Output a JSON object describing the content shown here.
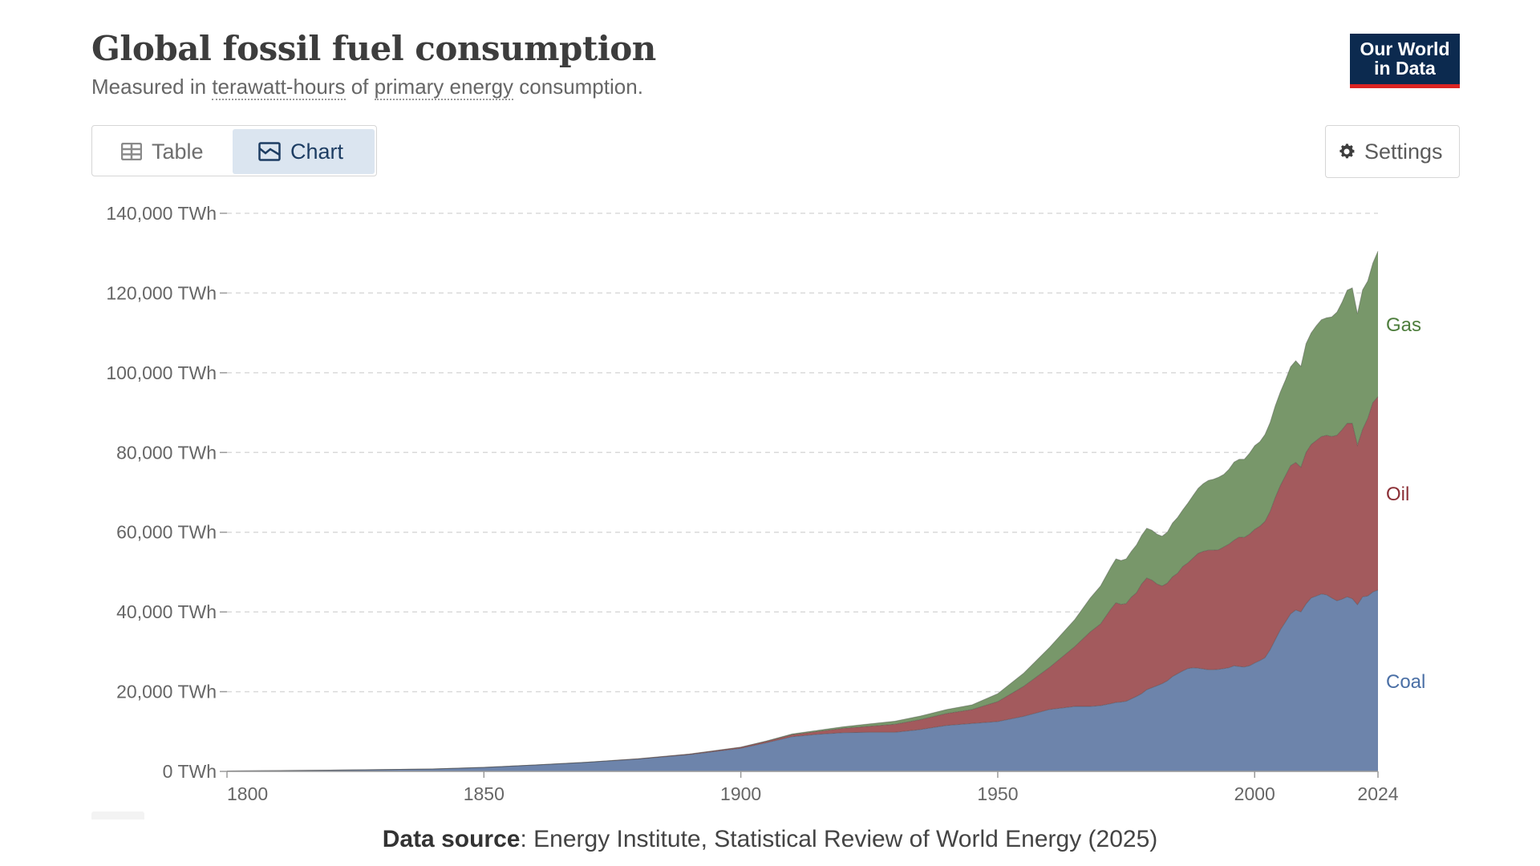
{
  "header": {
    "title": "Global fossil fuel consumption",
    "subtitle_prefix": "Measured in ",
    "subtitle_link1": "terawatt-hours",
    "subtitle_mid": " of ",
    "subtitle_link2": "primary energy",
    "subtitle_suffix": " consumption."
  },
  "logo": {
    "line1": "Our World",
    "line2": "in Data"
  },
  "tabs": {
    "table_label": "Table",
    "chart_label": "Chart",
    "selected": "Chart"
  },
  "settings_label": "Settings",
  "source": {
    "label": "Data source",
    "text": ": Energy Institute, Statistical Review of World Energy (2025)"
  },
  "colors": {
    "coal": "#6d84ab",
    "oil": "#a35a5d",
    "gas": "#78976a",
    "coal_label": "#4a6fa5",
    "oil_label": "#8b2f36",
    "gas_label": "#4d7d3c"
  },
  "chart_data": {
    "type": "area",
    "stacked": true,
    "xlim": [
      1800,
      2024
    ],
    "ylim": [
      0,
      140000
    ],
    "y_ticks": [
      "0 TWh",
      "20,000 TWh",
      "40,000 TWh",
      "60,000 TWh",
      "80,000 TWh",
      "100,000 TWh",
      "120,000 TWh",
      "140,000 TWh"
    ],
    "y_tick_values": [
      0,
      20000,
      40000,
      60000,
      80000,
      100000,
      120000,
      140000
    ],
    "x_ticks": [
      1800,
      1850,
      1900,
      1950,
      2000,
      2024
    ],
    "grid": "horizontal dashed",
    "legend": "inline right labels",
    "x": [
      1800,
      1820,
      1840,
      1850,
      1860,
      1870,
      1880,
      1890,
      1900,
      1905,
      1910,
      1915,
      1920,
      1925,
      1930,
      1935,
      1940,
      1945,
      1950,
      1955,
      1960,
      1965,
      1968,
      1970,
      1972,
      1973,
      1974,
      1975,
      1976,
      1977,
      1978,
      1979,
      1980,
      1981,
      1982,
      1983,
      1984,
      1985,
      1986,
      1987,
      1988,
      1989,
      1990,
      1991,
      1992,
      1993,
      1994,
      1995,
      1996,
      1997,
      1998,
      1999,
      2000,
      2001,
      2002,
      2003,
      2004,
      2005,
      2006,
      2007,
      2008,
      2009,
      2010,
      2011,
      2012,
      2013,
      2014,
      2015,
      2016,
      2017,
      2018,
      2019,
      2020,
      2021,
      2022,
      2023,
      2024
    ],
    "series": [
      {
        "name": "Coal",
        "values": [
          100,
          300,
          600,
          1000,
          1600,
          2300,
          3100,
          4200,
          5800,
          7200,
          8700,
          9300,
          9700,
          9800,
          9800,
          10500,
          11500,
          12000,
          12500,
          13800,
          15500,
          16300,
          16300,
          16500,
          17000,
          17300,
          17400,
          17600,
          18200,
          18800,
          19500,
          20500,
          21000,
          21500,
          22000,
          22700,
          23800,
          24500,
          25200,
          25800,
          26000,
          25900,
          25700,
          25500,
          25500,
          25600,
          25800,
          26000,
          26500,
          26300,
          26200,
          26500,
          27200,
          27800,
          28500,
          30500,
          33000,
          35500,
          37500,
          39500,
          40500,
          40000,
          42000,
          43500,
          44000,
          44500,
          44300,
          43500,
          42800,
          43200,
          43800,
          43300,
          41800,
          43800,
          44000,
          45000,
          45500
        ]
      },
      {
        "name": "Oil",
        "values": [
          0,
          0,
          0,
          0,
          0,
          0,
          50,
          150,
          250,
          350,
          500,
          700,
          1100,
          1500,
          2000,
          2500,
          3000,
          3500,
          5000,
          7500,
          10500,
          15000,
          18700,
          20500,
          23700,
          25000,
          24500,
          24500,
          25500,
          26000,
          27500,
          28000,
          27000,
          25500,
          24500,
          24500,
          25000,
          25200,
          26200,
          26500,
          27500,
          28800,
          29500,
          30000,
          30000,
          30000,
          30500,
          31000,
          31500,
          32500,
          32500,
          33000,
          33500,
          33700,
          34200,
          34700,
          35700,
          36200,
          36700,
          37200,
          37000,
          36300,
          38000,
          38500,
          39000,
          39500,
          40000,
          40500,
          41500,
          42500,
          43500,
          44000,
          40000,
          42000,
          44500,
          47500,
          48500
        ]
      },
      {
        "name": "Gas",
        "values": [
          0,
          0,
          0,
          0,
          0,
          0,
          0,
          0,
          50,
          100,
          200,
          300,
          400,
          600,
          800,
          900,
          1000,
          1200,
          2000,
          3300,
          5000,
          6800,
          8500,
          9500,
          10500,
          11000,
          11000,
          11200,
          11500,
          12000,
          12200,
          12500,
          12500,
          12500,
          12500,
          12800,
          13500,
          14000,
          14200,
          15000,
          15700,
          16300,
          17000,
          17500,
          17800,
          18200,
          18200,
          18800,
          19600,
          19500,
          19600,
          20300,
          21000,
          21200,
          21800,
          22300,
          23000,
          23500,
          24000,
          24800,
          25500,
          25300,
          27300,
          28000,
          28800,
          29300,
          29500,
          30000,
          30900,
          32000,
          33400,
          34000,
          33000,
          35000,
          34500,
          35000,
          36500
        ]
      }
    ]
  }
}
